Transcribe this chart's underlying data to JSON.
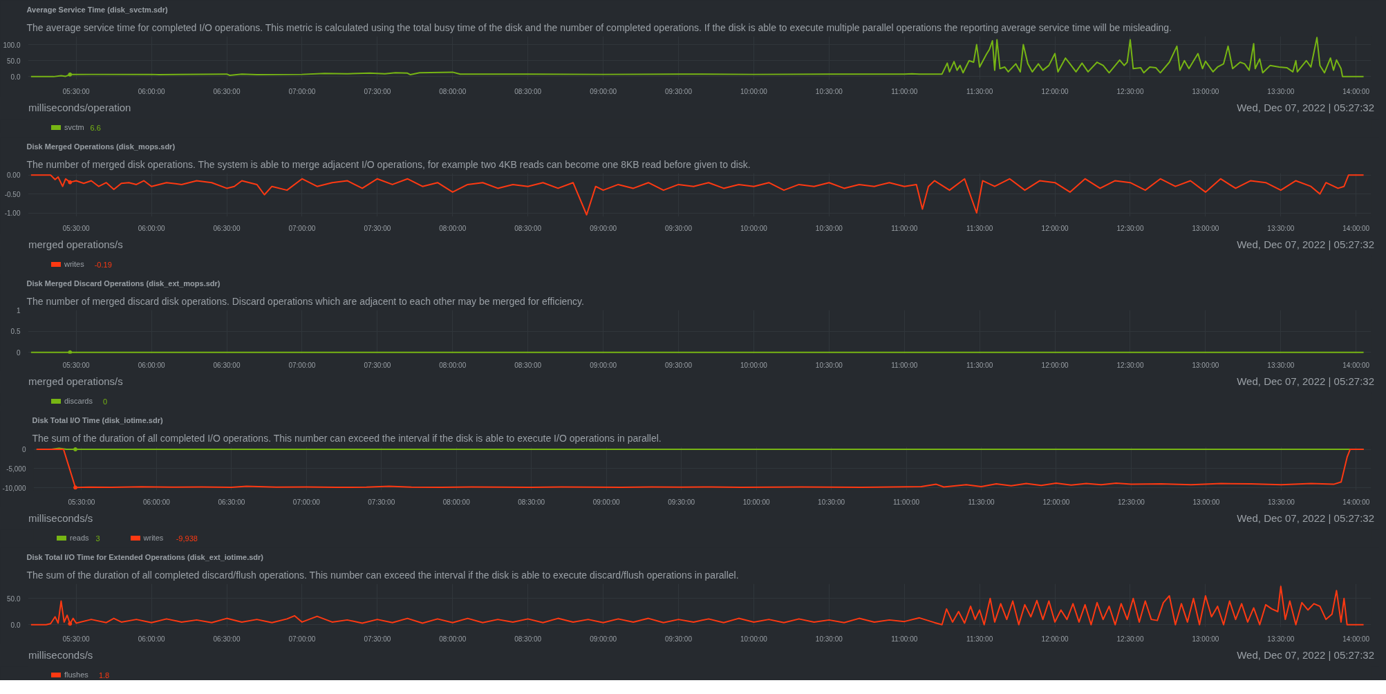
{
  "chart_data": [
    {
      "type": "line",
      "subtitle": "The average service time for completed I/O operations. This metric is calculated using the total busy time of the disk and the number of completed operations. If the disk is able to execute multiple parallel operations the reporting average service time will be misleading.",
      "title": "Average Service Time (disk_svctm.sdr)",
      "xlim": [
        5.18,
        14.1
      ],
      "ylim": [
        -10,
        126
      ],
      "xticks": [
        {
          "value": 5.5,
          "label": "05:30:00"
        },
        {
          "value": 6.0,
          "label": "06:00:00"
        },
        {
          "value": 6.5,
          "label": "06:30:00"
        },
        {
          "value": 7.0,
          "label": "07:00:00"
        },
        {
          "value": 7.5,
          "label": "07:30:00"
        },
        {
          "value": 8.0,
          "label": "08:00:00"
        },
        {
          "value": 8.5,
          "label": "08:30:00"
        },
        {
          "value": 9.0,
          "label": "09:00:00"
        },
        {
          "value": 9.5,
          "label": "09:30:00"
        },
        {
          "value": 10.0,
          "label": "10:00:00"
        },
        {
          "value": 10.5,
          "label": "10:30:00"
        },
        {
          "value": 11.0,
          "label": "11:00:00"
        },
        {
          "value": 11.5,
          "label": "11:30:00"
        },
        {
          "value": 12.0,
          "label": "12:00:00"
        },
        {
          "value": 12.5,
          "label": "12:30:00"
        },
        {
          "value": 13.0,
          "label": "13:00:00"
        },
        {
          "value": 13.5,
          "label": "13:30:00"
        },
        {
          "value": 14.0,
          "label": "14:00:00"
        }
      ],
      "yticks": [
        {
          "value": 0,
          "label": "0.0"
        },
        {
          "value": 50,
          "label": "50.0"
        },
        {
          "value": 100,
          "label": "100.0"
        }
      ],
      "grid": true,
      "legend": "bottom",
      "series": [
        {
          "name": "svctm",
          "color": "#77b514",
          "x": [
            5.2,
            5.35,
            5.4,
            5.43,
            5.459,
            5.6,
            6.0,
            6.05,
            6.5,
            6.52,
            6.6,
            6.7,
            7.0,
            7.15,
            7.3,
            7.45,
            7.55,
            7.62,
            7.7,
            7.72,
            7.78,
            8.0,
            8.05,
            8.5,
            9.0,
            9.5,
            10.0,
            10.5,
            11.0,
            11.05,
            11.1,
            11.25,
            11.285,
            11.3,
            11.33,
            11.35,
            11.37,
            11.39,
            11.43,
            11.46,
            11.48,
            11.5,
            11.545,
            11.565,
            11.585,
            11.6,
            11.615,
            11.635,
            11.666,
            11.69,
            11.74,
            11.77,
            11.79,
            11.82,
            11.85,
            11.89,
            11.92,
            11.96,
            12.0,
            12.02,
            12.07,
            12.1,
            12.14,
            12.18,
            12.22,
            12.28,
            12.32,
            12.36,
            12.43,
            12.46,
            12.48,
            12.5,
            12.52,
            12.57,
            12.59,
            12.63,
            12.67,
            12.7,
            12.76,
            12.81,
            12.83,
            12.86,
            12.89,
            12.95,
            12.98,
            13.0,
            13.05,
            13.08,
            13.12,
            13.15,
            13.18,
            13.23,
            13.26,
            13.29,
            13.32,
            13.33,
            13.36,
            13.38,
            13.43,
            13.49,
            13.54,
            13.58,
            13.6,
            13.61,
            13.67,
            13.7,
            13.74,
            13.76,
            13.79,
            13.83,
            13.85,
            13.87,
            13.9,
            13.91,
            14.05
          ],
          "values": [
            0,
            0,
            3,
            1,
            6.6,
            7,
            7,
            6,
            8,
            4,
            8,
            6,
            7,
            10,
            9,
            11,
            9,
            12,
            11,
            6,
            12,
            14,
            8,
            8,
            7,
            8,
            7,
            8,
            8,
            9,
            8,
            8,
            42,
            15,
            47,
            20,
            35,
            12,
            50,
            45,
            100,
            30,
            70,
            85,
            112,
            20,
            115,
            25,
            30,
            15,
            40,
            15,
            100,
            40,
            15,
            40,
            20,
            35,
            72,
            15,
            58,
            40,
            15,
            42,
            15,
            45,
            35,
            12,
            52,
            35,
            45,
            115,
            25,
            28,
            12,
            30,
            28,
            12,
            45,
            95,
            20,
            50,
            25,
            72,
            25,
            48,
            15,
            30,
            40,
            95,
            25,
            45,
            40,
            20,
            103,
            25,
            55,
            12,
            35,
            30,
            28,
            15,
            50,
            15,
            50,
            30,
            122,
            35,
            12,
            58,
            20,
            52,
            25,
            0,
            0
          ]
        },
        {
          "type": "scatter",
          "color": "#77b514",
          "x": [
            5.459
          ],
          "values": [
            6.6
          ]
        }
      ],
      "annotations": [
        "milliseconds/operation",
        "Wed, Dec 07, 2022 | 05:27:32",
        "6.6"
      ]
    },
    {
      "type": "line",
      "subtitle": "The number of merged disk operations. The system is able to merge adjacent I/O operations, for example two 4KB reads can become one 8KB read before given to disk.",
      "title": "Disk Merged Operations (disk_mops.sdr)",
      "xlim": [
        5.18,
        14.1
      ],
      "ylim": [
        -1.1,
        0.05
      ],
      "xticks": [
        {
          "value": 5.5,
          "label": "05:30:00"
        },
        {
          "value": 6.0,
          "label": "06:00:00"
        },
        {
          "value": 6.5,
          "label": "06:30:00"
        },
        {
          "value": 7.0,
          "label": "07:00:00"
        },
        {
          "value": 7.5,
          "label": "07:30:00"
        },
        {
          "value": 8.0,
          "label": "08:00:00"
        },
        {
          "value": 8.5,
          "label": "08:30:00"
        },
        {
          "value": 9.0,
          "label": "09:00:00"
        },
        {
          "value": 9.5,
          "label": "09:30:00"
        },
        {
          "value": 10.0,
          "label": "10:00:00"
        },
        {
          "value": 10.5,
          "label": "10:30:00"
        },
        {
          "value": 11.0,
          "label": "11:00:00"
        },
        {
          "value": 11.5,
          "label": "11:30:00"
        },
        {
          "value": 12.0,
          "label": "12:00:00"
        },
        {
          "value": 12.5,
          "label": "12:30:00"
        },
        {
          "value": 13.0,
          "label": "13:00:00"
        },
        {
          "value": 13.5,
          "label": "13:30:00"
        },
        {
          "value": 14.0,
          "label": "14:00:00"
        }
      ],
      "yticks": [
        {
          "value": 0,
          "label": "0.00"
        },
        {
          "value": -0.5,
          "label": "-0.50"
        },
        {
          "value": -1,
          "label": "-1.00"
        }
      ],
      "grid": true,
      "legend": "bottom",
      "series": [
        {
          "name": "writes",
          "color": "#fe3912",
          "x": [
            5.2,
            5.33,
            5.36,
            5.38,
            5.41,
            5.43,
            5.459,
            5.5,
            5.55,
            5.6,
            5.65,
            5.7,
            5.75,
            5.8,
            5.85,
            5.9,
            5.95,
            6.0,
            6.1,
            6.2,
            6.3,
            6.4,
            6.5,
            6.55,
            6.6,
            6.7,
            6.75,
            6.8,
            6.9,
            7.0,
            7.1,
            7.2,
            7.3,
            7.4,
            7.5,
            7.6,
            7.7,
            7.8,
            7.9,
            8.0,
            8.1,
            8.2,
            8.3,
            8.4,
            8.5,
            8.6,
            8.7,
            8.8,
            8.89,
            8.95,
            9.0,
            9.1,
            9.2,
            9.3,
            9.4,
            9.5,
            9.6,
            9.7,
            9.8,
            9.9,
            10.0,
            10.1,
            10.2,
            10.3,
            10.4,
            10.5,
            10.6,
            10.7,
            10.8,
            10.9,
            11.0,
            11.08,
            11.12,
            11.16,
            11.2,
            11.3,
            11.4,
            11.48,
            11.52,
            11.6,
            11.7,
            11.8,
            11.9,
            12.0,
            12.1,
            12.2,
            12.3,
            12.4,
            12.5,
            12.6,
            12.7,
            12.8,
            12.9,
            13.0,
            13.1,
            13.2,
            13.3,
            13.4,
            13.5,
            13.6,
            13.7,
            13.76,
            13.8,
            13.88,
            13.92,
            13.95,
            14.05
          ],
          "values": [
            0,
            0,
            -0.12,
            -0.05,
            -0.3,
            -0.1,
            -0.19,
            -0.15,
            -0.22,
            -0.15,
            -0.3,
            -0.2,
            -0.38,
            -0.22,
            -0.2,
            -0.25,
            -0.15,
            -0.3,
            -0.2,
            -0.25,
            -0.15,
            -0.2,
            -0.35,
            -0.3,
            -0.15,
            -0.25,
            -0.52,
            -0.3,
            -0.4,
            -0.1,
            -0.3,
            -0.2,
            -0.15,
            -0.35,
            -0.1,
            -0.25,
            -0.1,
            -0.3,
            -0.2,
            -0.45,
            -0.25,
            -0.2,
            -0.35,
            -0.25,
            -0.3,
            -0.2,
            -0.35,
            -0.2,
            -1.05,
            -0.3,
            -0.4,
            -0.25,
            -0.35,
            -0.2,
            -0.4,
            -0.25,
            -0.3,
            -0.2,
            -0.35,
            -0.25,
            -0.3,
            -0.2,
            -0.4,
            -0.25,
            -0.3,
            -0.2,
            -0.35,
            -0.25,
            -0.3,
            -0.2,
            -0.3,
            -0.25,
            -0.9,
            -0.3,
            -0.15,
            -0.4,
            -0.1,
            -1.0,
            -0.15,
            -0.3,
            -0.1,
            -0.4,
            -0.15,
            -0.2,
            -0.45,
            -0.1,
            -0.35,
            -0.15,
            -0.2,
            -0.4,
            -0.1,
            -0.3,
            -0.15,
            -0.45,
            -0.1,
            -0.35,
            -0.15,
            -0.2,
            -0.4,
            -0.15,
            -0.3,
            -0.5,
            -0.2,
            -0.35,
            -0.3,
            0,
            0
          ]
        },
        {
          "type": "scatter",
          "color": "#fe3912",
          "x": [
            5.459
          ],
          "values": [
            -0.19
          ]
        }
      ],
      "annotations": [
        "merged operations/s",
        "Wed, Dec 07, 2022 | 05:27:32",
        "-0.19"
      ]
    },
    {
      "type": "line",
      "subtitle": "The number of merged discard disk operations. Discard operations which are adjacent to each other may be merged for efficiency.",
      "title": "Disk Merged Discard Operations (disk_ext_mops.sdr)",
      "xlim": [
        5.18,
        14.1
      ],
      "ylim": [
        -0.03,
        1
      ],
      "xticks": [
        {
          "value": 5.5,
          "label": "05:30:00"
        },
        {
          "value": 6.0,
          "label": "06:00:00"
        },
        {
          "value": 6.5,
          "label": "06:30:00"
        },
        {
          "value": 7.0,
          "label": "07:00:00"
        },
        {
          "value": 7.5,
          "label": "07:30:00"
        },
        {
          "value": 8.0,
          "label": "08:00:00"
        },
        {
          "value": 8.5,
          "label": "08:30:00"
        },
        {
          "value": 9.0,
          "label": "09:00:00"
        },
        {
          "value": 9.5,
          "label": "09:30:00"
        },
        {
          "value": 10.0,
          "label": "10:00:00"
        },
        {
          "value": 10.5,
          "label": "10:30:00"
        },
        {
          "value": 11.0,
          "label": "11:00:00"
        },
        {
          "value": 11.5,
          "label": "11:30:00"
        },
        {
          "value": 12.0,
          "label": "12:00:00"
        },
        {
          "value": 12.5,
          "label": "12:30:00"
        },
        {
          "value": 13.0,
          "label": "13:00:00"
        },
        {
          "value": 13.5,
          "label": "13:30:00"
        },
        {
          "value": 14.0,
          "label": "14:00:00"
        }
      ],
      "yticks": [
        0,
        0.5,
        1
      ],
      "grid": true,
      "legend": "bottom",
      "series": [
        {
          "name": "discards",
          "color": "#77b514",
          "x": [
            5.2,
            5.459,
            6,
            7,
            8,
            9,
            10,
            11,
            12,
            13,
            14,
            14.05
          ],
          "values": [
            0,
            0,
            0,
            0,
            0,
            0,
            0,
            0,
            0,
            0,
            0,
            0
          ]
        },
        {
          "type": "scatter",
          "color": "#77b514",
          "x": [
            5.459
          ],
          "values": [
            0
          ]
        }
      ],
      "annotations": [
        "merged operations/s",
        "Wed, Dec 07, 2022 | 05:27:32",
        "0"
      ]
    },
    {
      "type": "line",
      "subtitle": "The sum of the duration of all completed I/O operations. This number can exceed the interval if the disk is able to execute I/O operations in parallel.",
      "title": "Disk Total I/O Time (disk_iotime.sdr)",
      "xlim": [
        5.18,
        14.1
      ],
      "ylim": [
        -10700,
        640
      ],
      "xticks": [
        {
          "value": 5.5,
          "label": "05:30:00"
        },
        {
          "value": 6.0,
          "label": "06:00:00"
        },
        {
          "value": 6.5,
          "label": "06:30:00"
        },
        {
          "value": 7.0,
          "label": "07:00:00"
        },
        {
          "value": 7.5,
          "label": "07:30:00"
        },
        {
          "value": 8.0,
          "label": "08:00:00"
        },
        {
          "value": 8.5,
          "label": "08:30:00"
        },
        {
          "value": 9.0,
          "label": "09:00:00"
        },
        {
          "value": 9.5,
          "label": "09:30:00"
        },
        {
          "value": 10.0,
          "label": "10:00:00"
        },
        {
          "value": 10.5,
          "label": "10:30:00"
        },
        {
          "value": 11.0,
          "label": "11:00:00"
        },
        {
          "value": 11.5,
          "label": "11:30:00"
        },
        {
          "value": 12.0,
          "label": "12:00:00"
        },
        {
          "value": 12.5,
          "label": "12:30:00"
        },
        {
          "value": 13.0,
          "label": "13:00:00"
        },
        {
          "value": 13.5,
          "label": "13:30:00"
        },
        {
          "value": 14.0,
          "label": "14:00:00"
        }
      ],
      "yticks": [
        0,
        {
          "value": -5000,
          "label": "-5,000"
        },
        {
          "value": -10000,
          "label": "-10,000"
        }
      ],
      "grid": true,
      "legend": "bottom",
      "series": [
        {
          "name": "reads",
          "color": "#77b514",
          "x": [
            5.2,
            5.3,
            5.35,
            5.4,
            5.459,
            6.0,
            8.0,
            10.0,
            12.0,
            13.9,
            14.05
          ],
          "values": [
            0,
            0,
            300,
            0,
            3,
            3,
            3,
            3,
            3,
            3,
            0
          ]
        },
        {
          "name": "writes",
          "color": "#fe3912",
          "x": [
            5.2,
            5.38,
            5.42,
            5.459,
            5.55,
            5.7,
            5.9,
            6.1,
            6.3,
            6.5,
            6.6,
            6.8,
            7.0,
            7.2,
            7.4,
            7.55,
            7.7,
            7.9,
            8.1,
            8.3,
            8.5,
            8.7,
            8.9,
            9.1,
            9.3,
            9.5,
            9.7,
            9.9,
            10.1,
            10.3,
            10.5,
            10.7,
            10.9,
            11.1,
            11.2,
            11.25,
            11.4,
            11.5,
            11.6,
            11.7,
            11.8,
            11.9,
            12.0,
            12.1,
            12.2,
            12.3,
            12.4,
            12.5,
            12.7,
            12.9,
            13.1,
            13.3,
            13.5,
            13.7,
            13.85,
            13.9,
            13.94,
            13.96,
            14.05
          ],
          "values": [
            0,
            0,
            -5000,
            -9938,
            -9850,
            -9900,
            -9750,
            -9850,
            -9800,
            -9900,
            -9600,
            -9850,
            -9800,
            -9900,
            -9850,
            -9600,
            -9850,
            -9900,
            -9800,
            -9850,
            -9900,
            -9800,
            -9850,
            -9900,
            -9800,
            -9850,
            -9800,
            -9900,
            -9850,
            -9800,
            -9850,
            -9900,
            -9800,
            -9700,
            -9100,
            -9800,
            -9200,
            -9700,
            -9000,
            -9500,
            -8900,
            -9400,
            -8800,
            -9300,
            -8900,
            -9200,
            -8800,
            -9100,
            -9000,
            -9200,
            -8900,
            -9000,
            -9200,
            -8900,
            -9100,
            -8500,
            -2000,
            0,
            0
          ]
        },
        {
          "type": "scatter",
          "color": "#77b514",
          "x": [
            5.459
          ],
          "values": [
            3
          ]
        },
        {
          "type": "scatter",
          "color": "#fe3912",
          "x": [
            5.459
          ],
          "values": [
            -9938
          ]
        }
      ],
      "annotations": [
        "milliseconds/s",
        "Wed, Dec 07, 2022 | 05:27:32",
        "3",
        "-9,938"
      ]
    },
    {
      "type": "line",
      "subtitle": "The sum of the duration of all completed discard/flush operations. This number can exceed the interval if the disk is able to execute discard/flush operations in parallel.",
      "title": "Disk Total I/O Time for Extended Operations (disk_ext_iotime.sdr)",
      "xlim": [
        5.18,
        14.1
      ],
      "ylim": [
        -5,
        78
      ],
      "xticks": [
        {
          "value": 5.5,
          "label": "05:30:00"
        },
        {
          "value": 6.0,
          "label": "06:00:00"
        },
        {
          "value": 6.5,
          "label": "06:30:00"
        },
        {
          "value": 7.0,
          "label": "07:00:00"
        },
        {
          "value": 7.5,
          "label": "07:30:00"
        },
        {
          "value": 8.0,
          "label": "08:00:00"
        },
        {
          "value": 8.5,
          "label": "08:30:00"
        },
        {
          "value": 9.0,
          "label": "09:00:00"
        },
        {
          "value": 9.5,
          "label": "09:30:00"
        },
        {
          "value": 10.0,
          "label": "10:00:00"
        },
        {
          "value": 10.5,
          "label": "10:30:00"
        },
        {
          "value": 11.0,
          "label": "11:00:00"
        },
        {
          "value": 11.5,
          "label": "11:30:00"
        },
        {
          "value": 12.0,
          "label": "12:00:00"
        },
        {
          "value": 12.5,
          "label": "12:30:00"
        },
        {
          "value": 13.0,
          "label": "13:00:00"
        },
        {
          "value": 13.5,
          "label": "13:30:00"
        },
        {
          "value": 14.0,
          "label": "14:00:00"
        }
      ],
      "yticks": [
        {
          "value": 0,
          "label": "0.0"
        },
        {
          "value": 50,
          "label": "50.0"
        }
      ],
      "grid": true,
      "legend": "bottom",
      "series": [
        {
          "name": "flushes",
          "color": "#fe3912",
          "x": [
            5.2,
            5.3,
            5.33,
            5.36,
            5.38,
            5.4,
            5.42,
            5.44,
            5.459,
            5.48,
            5.5,
            5.6,
            5.7,
            5.75,
            5.8,
            5.9,
            6.0,
            6.1,
            6.2,
            6.3,
            6.4,
            6.5,
            6.6,
            6.7,
            6.8,
            6.9,
            6.95,
            7.0,
            7.1,
            7.2,
            7.3,
            7.4,
            7.5,
            7.6,
            7.7,
            7.8,
            7.9,
            8.0,
            8.1,
            8.2,
            8.3,
            8.4,
            8.5,
            8.6,
            8.7,
            8.8,
            8.9,
            9.0,
            9.1,
            9.2,
            9.3,
            9.4,
            9.5,
            9.6,
            9.7,
            9.8,
            9.9,
            10.0,
            10.1,
            10.2,
            10.3,
            10.4,
            10.5,
            10.6,
            10.7,
            10.8,
            10.9,
            11.0,
            11.1,
            11.2,
            11.25,
            11.28,
            11.32,
            11.36,
            11.4,
            11.44,
            11.47,
            11.5,
            11.53,
            11.57,
            11.6,
            11.64,
            11.68,
            11.72,
            11.76,
            11.8,
            11.84,
            11.88,
            11.92,
            11.96,
            12.0,
            12.04,
            12.08,
            12.12,
            12.16,
            12.2,
            12.24,
            12.28,
            12.32,
            12.36,
            12.4,
            12.44,
            12.48,
            12.52,
            12.56,
            12.6,
            12.64,
            12.68,
            12.72,
            12.76,
            12.8,
            12.84,
            12.88,
            12.92,
            12.96,
            13.0,
            13.04,
            13.08,
            13.12,
            13.16,
            13.2,
            13.24,
            13.28,
            13.32,
            13.36,
            13.4,
            13.44,
            13.48,
            13.5,
            13.53,
            13.56,
            13.6,
            13.64,
            13.68,
            13.72,
            13.76,
            13.8,
            13.84,
            13.87,
            13.9,
            13.92,
            13.94,
            14.05
          ],
          "values": [
            0,
            0,
            2,
            15,
            3,
            45,
            5,
            18,
            1.8,
            12,
            3,
            10,
            4,
            12,
            5,
            10,
            4,
            11,
            5,
            9,
            4,
            12,
            5,
            10,
            4,
            11,
            17,
            5,
            16,
            5,
            9,
            3,
            10,
            4,
            12,
            3,
            11,
            4,
            12,
            4,
            10,
            5,
            11,
            4,
            12,
            5,
            10,
            4,
            11,
            5,
            12,
            4,
            10,
            5,
            11,
            4,
            12,
            5,
            10,
            4,
            11,
            5,
            9,
            4,
            12,
            5,
            9,
            6,
            13,
            4,
            0,
            30,
            5,
            25,
            3,
            35,
            10,
            28,
            0,
            50,
            5,
            40,
            10,
            45,
            0,
            38,
            15,
            46,
            10,
            45,
            5,
            28,
            10,
            40,
            5,
            38,
            0,
            42,
            10,
            35,
            0,
            40,
            10,
            50,
            5,
            45,
            10,
            8,
            42,
            55,
            0,
            40,
            5,
            50,
            0,
            55,
            15,
            35,
            0,
            45,
            10,
            40,
            5,
            32,
            0,
            38,
            30,
            25,
            73,
            10,
            45,
            0,
            42,
            28,
            40,
            35,
            10,
            20,
            65,
            5,
            50,
            0,
            0
          ]
        },
        {
          "type": "scatter",
          "color": "#fe3912",
          "x": [
            5.459
          ],
          "values": [
            1.8
          ]
        }
      ],
      "annotations": [
        "milliseconds/s",
        "Wed, Dec 07, 2022 | 05:27:32",
        "1.8"
      ]
    }
  ]
}
